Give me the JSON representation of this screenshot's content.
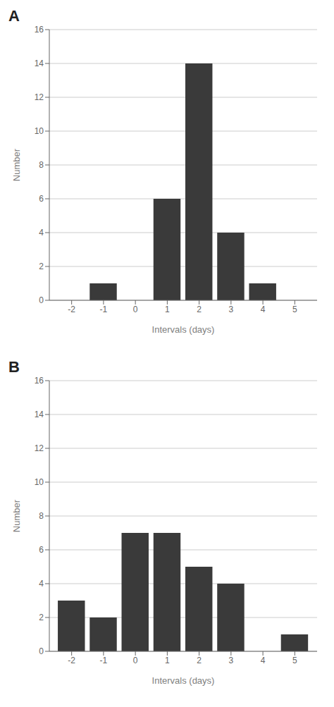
{
  "chart_data": [
    {
      "type": "bar",
      "title": "A",
      "x": [
        -1,
        1,
        2,
        3,
        4
      ],
      "values": [
        1,
        6,
        14,
        4,
        1
      ],
      "color": "#3a3a3a",
      "xlim": [
        -2.7,
        5.7
      ],
      "xticks": [
        -2,
        -1,
        0,
        1,
        2,
        3,
        4,
        5
      ],
      "ylim": [
        0,
        16
      ],
      "yticks": [
        0,
        2,
        4,
        6,
        8,
        10,
        12,
        14,
        16
      ],
      "xlabel": "Intervals (days)",
      "ylabel": "Number",
      "grid": true
    },
    {
      "type": "bar",
      "title": "B",
      "x": [
        -2,
        -1,
        0,
        1,
        2,
        3,
        5
      ],
      "values": [
        3,
        2,
        7,
        7,
        5,
        4,
        1
      ],
      "color": "#3a3a3a",
      "xlim": [
        -2.7,
        5.7
      ],
      "xticks": [
        -2,
        -1,
        0,
        1,
        2,
        3,
        4,
        5
      ],
      "ylim": [
        0,
        16
      ],
      "yticks": [
        0,
        2,
        4,
        6,
        8,
        10,
        12,
        14,
        16
      ],
      "xlabel": "Intervals (days)",
      "ylabel": "Number",
      "grid": true
    }
  ]
}
